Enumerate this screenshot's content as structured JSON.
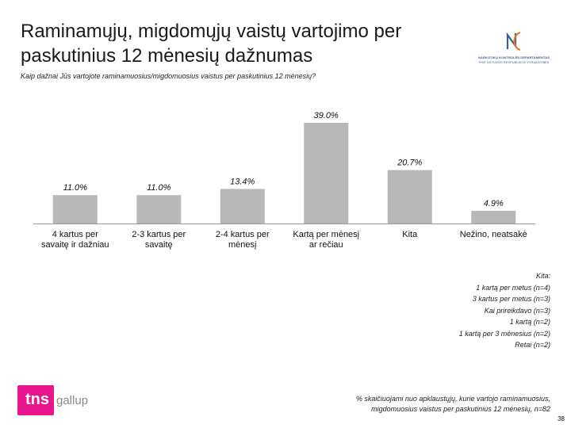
{
  "slide": {
    "title": "Raminamųjų, migdomųjų vaistų vartojimo per paskutinius 12 mėnesių dažnumas",
    "question": "Kaip dažnai Jūs vartojote raminamuosius/migdomuosius vaistus per paskutinius 12 mėnesių?",
    "page_number": "38"
  },
  "logo_nkd": {
    "mark_text": "NKD",
    "line1": "NARKOTIKŲ KONTROLĖS DEPARTAMENTAS",
    "line2": "PRIE LIETUVOS RESPUBLIKOS VYRIAUSYBĖS",
    "color": "#3d5a9a",
    "accent": "#e87722"
  },
  "logo_tns": {
    "tns_text": "tns",
    "gallup_text": "gallup",
    "color": "#e8168c"
  },
  "chart_data": {
    "type": "bar",
    "categories": [
      [
        "4 kartus per",
        "savaitę ir dažniau"
      ],
      [
        "2-3 kartus per",
        "savaitę"
      ],
      [
        "2-4 kartus per",
        "mėnesį"
      ],
      [
        "Kartą per mėnesį",
        "ar rečiau"
      ],
      [
        "Kita"
      ],
      [
        "Nežino, neatsakė"
      ]
    ],
    "values": [
      11.0,
      11.0,
      13.4,
      39.0,
      20.7,
      4.9
    ],
    "value_labels": [
      "11.0%",
      "11.0%",
      "13.4%",
      "39.0%",
      "20.7%",
      "4.9%"
    ],
    "unit": "%",
    "ylim": [
      0,
      39.0
    ],
    "bar_color": "#b8b8b8",
    "grid": false,
    "legend": "none"
  },
  "kita_note": {
    "heading": "Kita:",
    "items": [
      "1 kartą per metus (n=4)",
      "3 kartus per metus (n=3)",
      "Kai prireikdavo (n=3)",
      "1 kartą (n=2)",
      "1 kartą per 3 mėnesius (n=2)",
      "Retai (n=2)"
    ]
  },
  "footnote": {
    "line1": "% skaičiuojami nuo apklaustųjų, kurie vartojo raminamuosius,",
    "line2": "migdomuosius vaistus per paskutinius 12 mėnesių, n=82"
  }
}
